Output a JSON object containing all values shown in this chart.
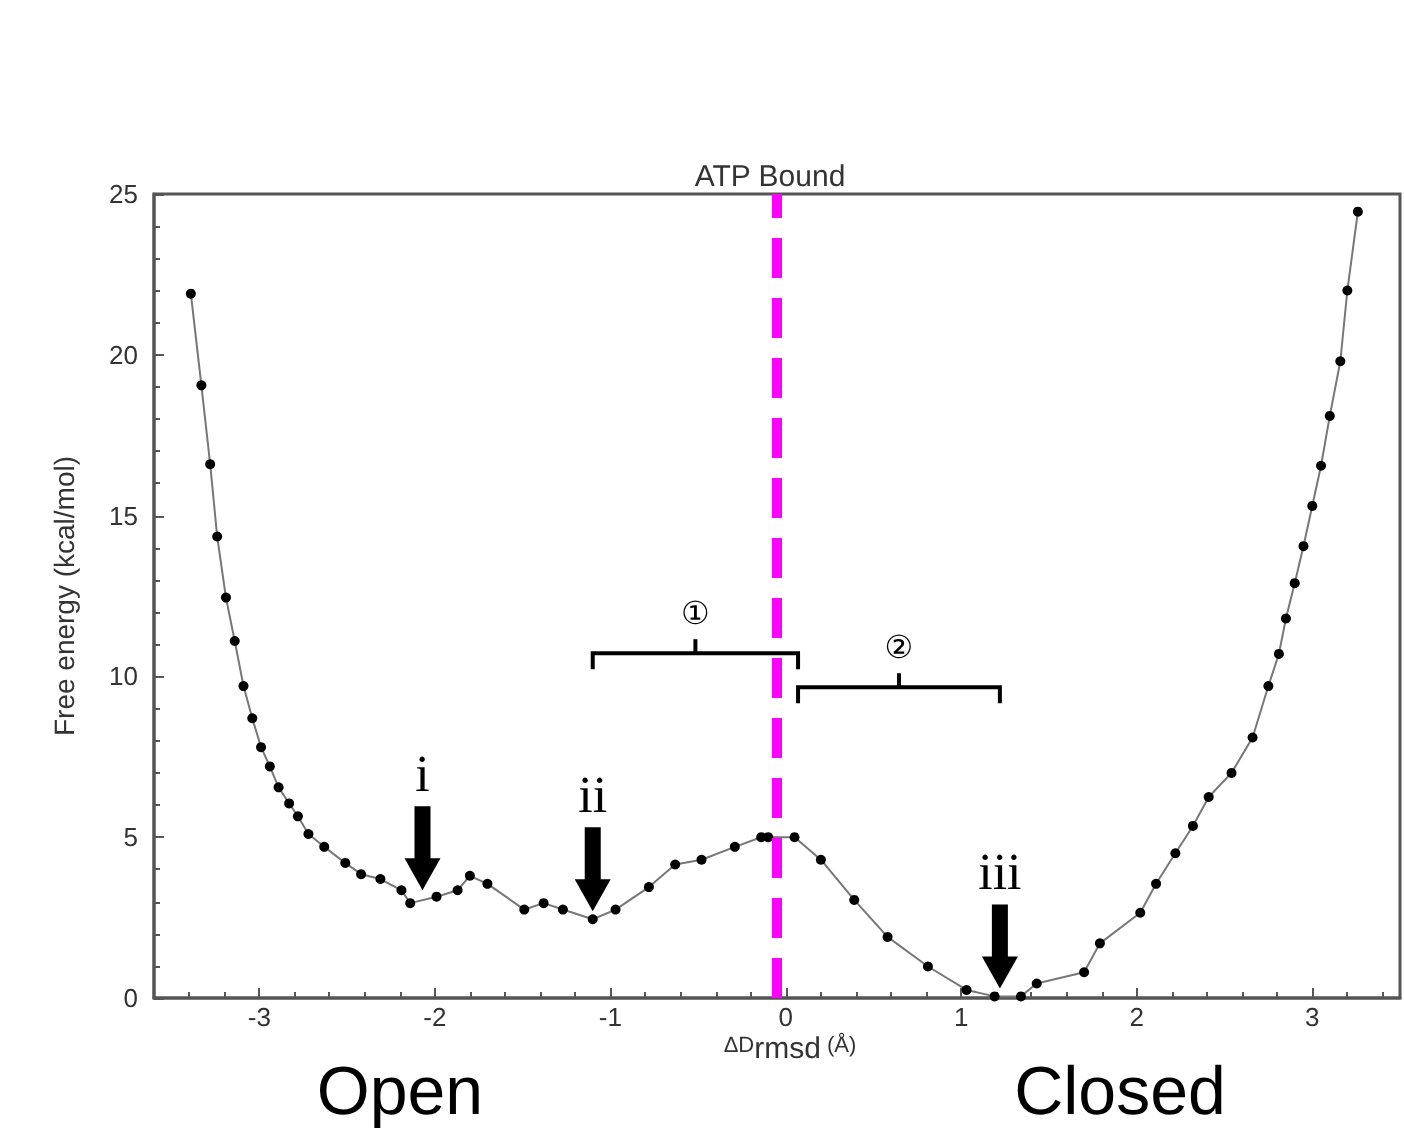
{
  "chart_data": {
    "type": "line",
    "title": "ATP Bound",
    "xlabel": "ΔD$_{rmsd}$ (Å)",
    "ylabel": "Free energy (kcal/mol)",
    "xlim": [
      -3.6,
      3.5
    ],
    "xticks": [
      -3,
      -2,
      -1,
      0,
      1,
      2,
      3
    ],
    "ylim": [
      0,
      25
    ],
    "yticks": [
      0,
      5,
      10,
      15,
      20,
      25
    ],
    "grid": false,
    "marker": "circle",
    "line_style": "solid",
    "series": [
      {
        "color": "#000000",
        "x": [
          -3.39,
          -3.33,
          -3.28,
          -3.24,
          -3.19,
          -3.14,
          -3.09,
          -3.04,
          -2.99,
          -2.94,
          -2.89,
          -2.83,
          -2.78,
          -2.72,
          -2.63,
          -2.51,
          -2.42,
          -2.31,
          -2.19,
          -2.14,
          -1.99,
          -1.87,
          -1.8,
          -1.7,
          -1.49,
          -1.38,
          -1.27,
          -1.1,
          -0.97,
          -0.78,
          -0.63,
          -0.48,
          -0.29,
          -0.14,
          -0.1,
          0.05,
          0.2,
          0.39,
          0.58,
          0.81,
          1.03,
          1.19,
          1.34,
          1.43,
          1.7,
          1.79,
          2.02,
          2.11,
          2.22,
          2.32,
          2.41,
          2.54,
          2.66,
          2.75,
          2.81,
          2.85,
          2.9,
          2.95,
          3.0,
          3.05,
          3.1,
          3.16,
          3.2,
          3.26
        ],
        "values": [
          21.9,
          19.05,
          16.6,
          14.35,
          12.45,
          11.1,
          9.7,
          8.7,
          7.8,
          7.2,
          6.55,
          6.05,
          5.65,
          5.1,
          4.7,
          4.2,
          3.85,
          3.7,
          3.35,
          2.95,
          3.15,
          3.35,
          3.8,
          3.55,
          2.75,
          2.95,
          2.75,
          2.45,
          2.75,
          3.45,
          4.15,
          4.3,
          4.7,
          5.0,
          5.0,
          5.0,
          4.3,
          3.05,
          1.9,
          0.98,
          0.25,
          0.05,
          0.05,
          0.45,
          0.8,
          1.7,
          2.65,
          3.55,
          4.5,
          5.35,
          6.25,
          7.0,
          8.1,
          9.7,
          10.7,
          11.8,
          12.9,
          14.05,
          15.3,
          16.55,
          18.1,
          19.8,
          22.0,
          24.45
        ]
      }
    ],
    "ref_lines": [
      {
        "axis": "x",
        "value": -0.05,
        "color": "#ff00ff",
        "line_style": "dashed"
      }
    ],
    "annotations": [
      {
        "text": "i",
        "x": -2.07,
        "y": 3.1
      },
      {
        "text": "ii",
        "x": -1.1,
        "y": 2.45
      },
      {
        "text": "iii",
        "x": 1.22,
        "y": 0.05
      },
      "①",
      "②",
      "Open",
      "Closed"
    ]
  }
}
